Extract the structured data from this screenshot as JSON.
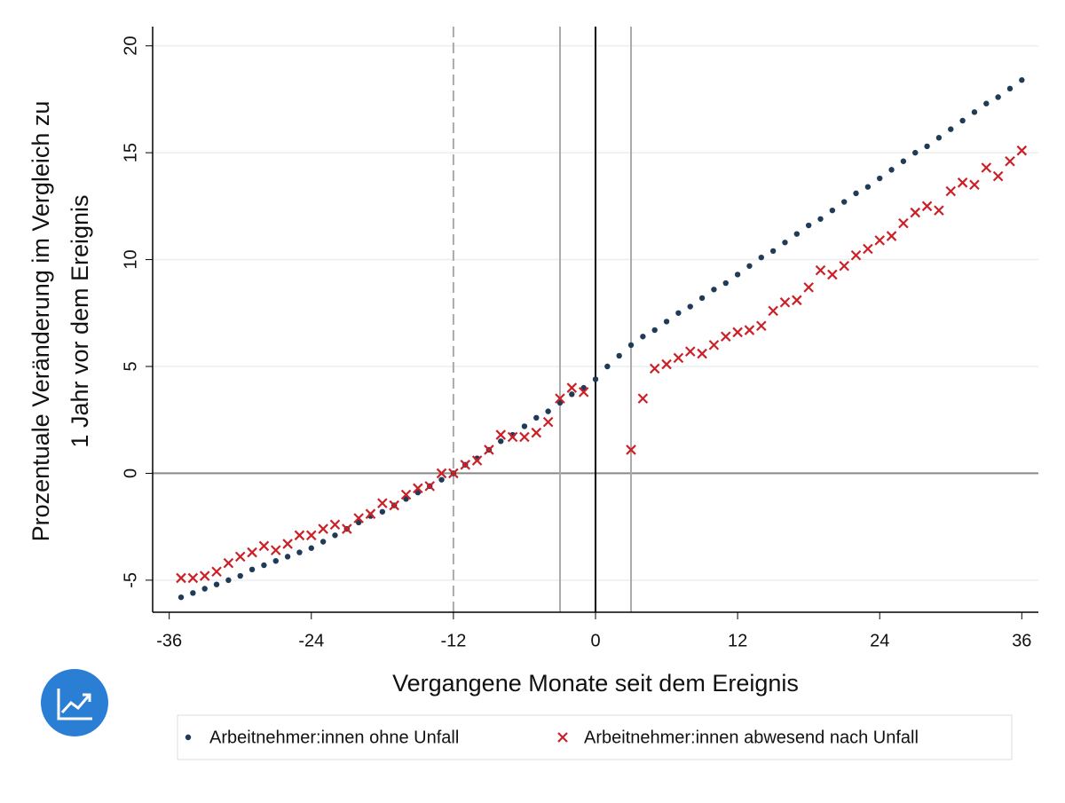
{
  "chart_data": {
    "type": "scatter",
    "xlabel": "Vergangene Monate seit dem Ereignis",
    "ylabel": [
      "Prozentuale Veränderung im Vergleich zu",
      "1 Jahr vor dem Ereignis"
    ],
    "x": [
      -35,
      -34,
      -33,
      -32,
      -31,
      -30,
      -29,
      -28,
      -27,
      -26,
      -25,
      -24,
      -23,
      -22,
      -21,
      -20,
      -19,
      -18,
      -17,
      -16,
      -15,
      -14,
      -13,
      -12,
      -11,
      -10,
      -9,
      -8,
      -7,
      -6,
      -5,
      -4,
      -3,
      -2,
      -1,
      0,
      1,
      2,
      3,
      4,
      5,
      6,
      7,
      8,
      9,
      10,
      11,
      12,
      13,
      14,
      15,
      16,
      17,
      18,
      19,
      20,
      21,
      22,
      23,
      24,
      25,
      26,
      27,
      28,
      29,
      30,
      31,
      32,
      33,
      34,
      35,
      36
    ],
    "series": [
      {
        "name": "Arbeitnehmer:innen ohne Unfall",
        "color": "#1f3b57",
        "marker": "dot",
        "values": [
          -5.8,
          -5.6,
          -5.4,
          -5.2,
          -5.0,
          -4.8,
          -4.5,
          -4.3,
          -4.1,
          -3.9,
          -3.7,
          -3.5,
          -3.2,
          -2.9,
          -2.6,
          -2.3,
          -2.0,
          -1.8,
          -1.5,
          -1.2,
          -0.9,
          -0.6,
          -0.3,
          0.0,
          0.4,
          0.7,
          1.1,
          1.5,
          1.8,
          2.2,
          2.6,
          2.9,
          3.3,
          3.7,
          4.0,
          4.4,
          5.0,
          5.5,
          6.0,
          6.4,
          6.7,
          7.1,
          7.5,
          7.8,
          8.2,
          8.6,
          8.9,
          9.3,
          9.7,
          10.1,
          10.4,
          10.8,
          11.2,
          11.6,
          11.9,
          12.3,
          12.7,
          13.1,
          13.4,
          13.8,
          14.2,
          14.6,
          15.0,
          15.3,
          15.7,
          16.1,
          16.5,
          16.9,
          17.3,
          17.6,
          18.0,
          18.4
        ]
      },
      {
        "name": "Arbeitnehmer:innen abwesend nach Unfall",
        "color": "#cc2027",
        "marker": "x",
        "values": [
          -4.9,
          -4.9,
          -4.8,
          -4.6,
          -4.2,
          -3.9,
          -3.7,
          -3.4,
          -3.6,
          -3.3,
          -2.9,
          -2.9,
          -2.6,
          -2.4,
          -2.6,
          -2.1,
          -1.9,
          -1.4,
          -1.5,
          -1.0,
          -0.7,
          -0.6,
          0.0,
          0.0,
          0.4,
          0.6,
          1.1,
          1.8,
          1.7,
          1.7,
          1.9,
          2.4,
          3.5,
          4.0,
          3.8,
          null,
          null,
          null,
          1.1,
          3.5,
          4.9,
          5.1,
          5.4,
          5.7,
          5.6,
          6.0,
          6.4,
          6.6,
          6.7,
          6.9,
          7.6,
          8.0,
          8.1,
          8.7,
          9.5,
          9.3,
          9.7,
          10.2,
          10.5,
          10.9,
          11.1,
          11.7,
          12.2,
          12.5,
          12.3,
          13.2,
          13.6,
          13.5,
          14.3,
          13.9,
          14.6,
          15.1
        ]
      }
    ],
    "xlim": [
      -37.4,
      37.4
    ],
    "ylim": [
      -6.5,
      20.9
    ],
    "xticks": [
      -36,
      -24,
      -12,
      0,
      12,
      24,
      36
    ],
    "yticks": [
      -5,
      0,
      5,
      10,
      15,
      20
    ],
    "grid": true,
    "vlines": [
      {
        "x": -12,
        "color": "#aaaaaa",
        "style": "dashed"
      },
      {
        "x": -3,
        "color": "#aaaaaa",
        "style": "solid"
      },
      {
        "x": 3,
        "color": "#aaaaaa",
        "style": "solid"
      },
      {
        "x": 0,
        "color": "#000000",
        "style": "solid"
      }
    ],
    "hlines": [
      {
        "y": 0,
        "color": "#888888"
      }
    ],
    "legend": "bottom"
  }
}
